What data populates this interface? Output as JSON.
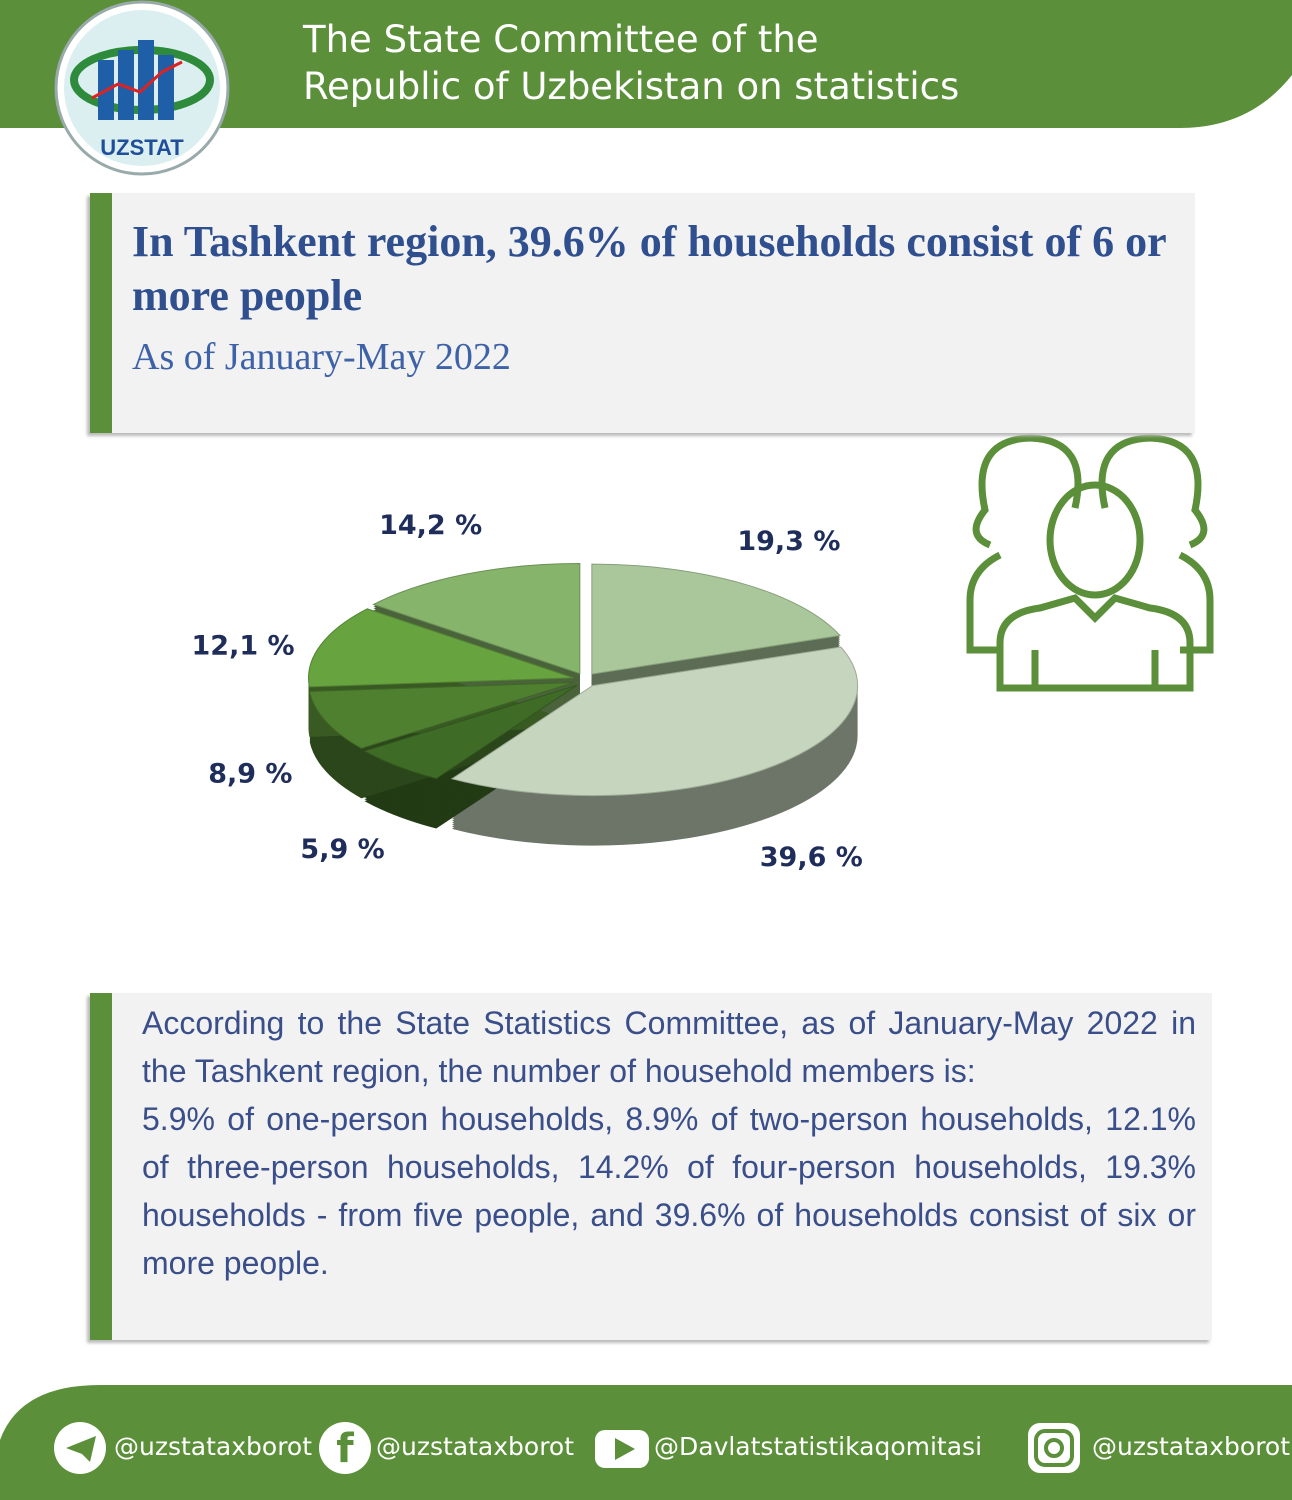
{
  "header": {
    "logo_text": "UZSTAT",
    "title_line1": "The State Committee of the",
    "title_line2": "Republic of Uzbekistan on statistics"
  },
  "chart_data": {
    "type": "pie",
    "title": "In Tashkent region, 39.6% of households consist of 6 or more people",
    "subtitle": "As of January-May 2022",
    "values": [
      19.3,
      39.6,
      5.9,
      8.9,
      12.1,
      14.2
    ],
    "value_labels": [
      "19,3 %",
      "39,6 %",
      "5,9 %",
      "8,9 %",
      "12,1 %",
      "14,2 %"
    ],
    "colors": [
      "#a9c79a",
      "#c6d5bd",
      "#3e6b25",
      "#4f8030",
      "#67a33f",
      "#86b46b"
    ]
  },
  "body": {
    "paragraphs": [
      "According to the State Statistics Committee, as of January-May 2022 in the Tashkent region, the number of household members is:",
      "5.9% of one-person households, 8.9% of two-person households, 12.1% of three-person households, 14.2% of four-person households, 19.3% households - from five people, and 39.6% of households consist of six or more people."
    ]
  },
  "footer": {
    "telegram": "@uzstataxborot",
    "facebook": "@uzstataxborot",
    "youtube": "@Davlatstatistikaqomitasi",
    "instagram": "@uzstataxborot"
  }
}
